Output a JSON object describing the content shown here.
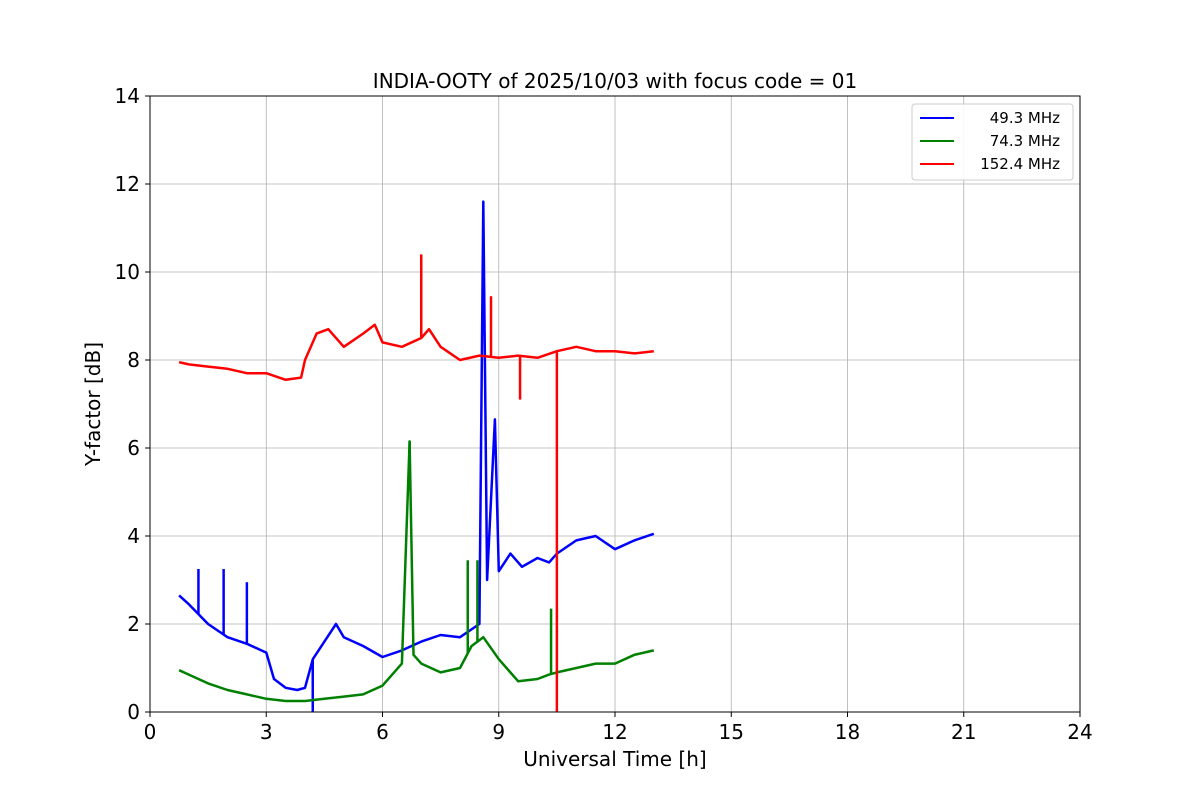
{
  "chart_data": {
    "type": "line",
    "title": "INDIA-OOTY of 2025/10/03 with focus code = 01",
    "xlabel": "Universal Time [h]",
    "ylabel": "Y-factor [dB]",
    "xlim": [
      0,
      24
    ],
    "ylim": [
      0,
      14
    ],
    "x_ticks": [
      "0",
      "3",
      "6",
      "9",
      "12",
      "15",
      "18",
      "21",
      "24"
    ],
    "y_ticks": [
      "0",
      "2",
      "4",
      "6",
      "8",
      "10",
      "12",
      "14"
    ],
    "grid": true,
    "legend_position": "top-right",
    "series": [
      {
        "name": "49.3 MHz",
        "color": "#0000ff",
        "x": [
          0.75,
          1.0,
          1.5,
          2.0,
          2.5,
          3.0,
          3.2,
          3.5,
          3.8,
          4.0,
          4.2,
          4.5,
          4.8,
          5.0,
          5.5,
          6.0,
          6.5,
          7.0,
          7.5,
          8.0,
          8.5,
          8.6,
          8.7,
          8.9,
          9.0,
          9.3,
          9.6,
          10.0,
          10.3,
          10.5,
          11.0,
          11.5,
          12.0,
          12.5,
          13.0
        ],
        "values": [
          2.65,
          2.45,
          2.0,
          1.7,
          1.55,
          1.35,
          0.75,
          0.55,
          0.5,
          0.55,
          1.2,
          1.6,
          2.0,
          1.7,
          1.5,
          1.25,
          1.4,
          1.6,
          1.75,
          1.7,
          2.0,
          11.6,
          3.0,
          6.65,
          3.2,
          3.6,
          3.3,
          3.5,
          3.4,
          3.6,
          3.9,
          4.0,
          3.7,
          3.9,
          4.05
        ],
        "spikes": [
          [
            1.25,
            3.25
          ],
          [
            1.9,
            3.25
          ],
          [
            2.5,
            2.95
          ],
          [
            4.2,
            0.0
          ]
        ]
      },
      {
        "name": "74.3 MHz",
        "color": "#008000",
        "x": [
          0.75,
          1.0,
          1.5,
          2.0,
          2.5,
          3.0,
          3.5,
          4.0,
          4.5,
          5.0,
          5.5,
          6.0,
          6.5,
          6.7,
          6.8,
          7.0,
          7.5,
          8.0,
          8.3,
          8.6,
          9.0,
          9.5,
          10.0,
          10.3,
          10.5,
          11.0,
          11.5,
          12.0,
          12.5,
          13.0
        ],
        "values": [
          0.95,
          0.85,
          0.65,
          0.5,
          0.4,
          0.3,
          0.25,
          0.25,
          0.3,
          0.35,
          0.4,
          0.6,
          1.1,
          6.15,
          1.3,
          1.1,
          0.9,
          1.0,
          1.5,
          1.7,
          1.2,
          0.7,
          0.75,
          0.85,
          0.9,
          1.0,
          1.1,
          1.1,
          1.3,
          1.4
        ],
        "spikes": [
          [
            6.7,
            5.2
          ],
          [
            8.2,
            3.45
          ],
          [
            8.45,
            3.45
          ],
          [
            10.35,
            2.35
          ]
        ]
      },
      {
        "name": "152.4 MHz",
        "color": "#ff0000",
        "x": [
          0.75,
          1.0,
          1.5,
          2.0,
          2.5,
          3.0,
          3.5,
          3.9,
          4.0,
          4.3,
          4.6,
          5.0,
          5.5,
          5.8,
          6.0,
          6.5,
          7.0,
          7.2,
          7.5,
          8.0,
          8.5,
          9.0,
          9.5,
          10.0,
          10.5,
          11.0,
          11.5,
          12.0,
          12.5,
          13.0
        ],
        "values": [
          7.95,
          7.9,
          7.85,
          7.8,
          7.7,
          7.7,
          7.55,
          7.6,
          8.0,
          8.6,
          8.7,
          8.3,
          8.6,
          8.8,
          8.4,
          8.3,
          8.5,
          8.7,
          8.3,
          8.0,
          8.1,
          8.05,
          8.1,
          8.05,
          8.2,
          8.3,
          8.2,
          8.2,
          8.15,
          8.2
        ],
        "spikes": [
          [
            7.0,
            10.4
          ],
          [
            8.8,
            9.45
          ],
          [
            9.55,
            7.1
          ],
          [
            10.5,
            0.0
          ]
        ]
      }
    ]
  }
}
